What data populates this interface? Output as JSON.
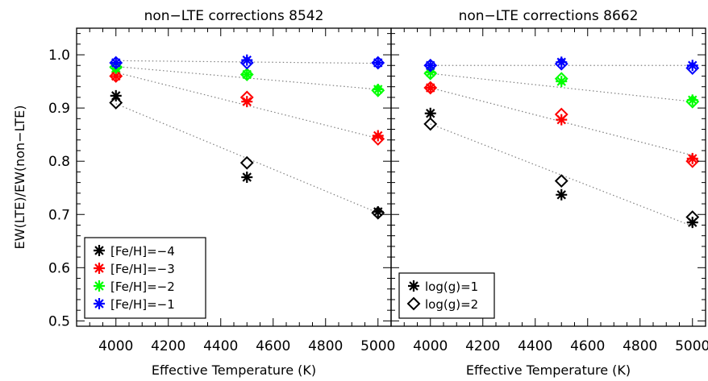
{
  "chart_data": [
    {
      "type": "scatter",
      "title": "non−LTE corrections 8542",
      "xlabel": "Effective Temperature (K)",
      "ylabel": "EW(LTE)/EW(non−LTE)",
      "xlim": [
        3850,
        5050
      ],
      "ylim": [
        0.49,
        1.05
      ],
      "xticks": [
        "4000",
        "4200",
        "4400",
        "4600",
        "4800",
        "5000"
      ],
      "yticks": [
        "0.5",
        "0.6",
        "0.7",
        "0.8",
        "0.9",
        "1.0"
      ],
      "grid": false,
      "legend_position": "bottom-left",
      "legend": [
        {
          "label": "[Fe/H]=−4",
          "color": "#000000",
          "marker": "asterisk"
        },
        {
          "label": "[Fe/H]=−3",
          "color": "#ff0000",
          "marker": "asterisk"
        },
        {
          "label": "[Fe/H]=−2",
          "color": "#00ff00",
          "marker": "asterisk"
        },
        {
          "label": "[Fe/H]=−1",
          "color": "#0000ff",
          "marker": "asterisk"
        }
      ],
      "series": [
        {
          "name": "[Fe/H]=−4",
          "color": "#000000",
          "marker": "asterisk",
          "x": [
            4000,
            4500,
            5000
          ],
          "y": [
            0.923,
            0.77,
            0.705
          ]
        },
        {
          "color": "#000000",
          "marker": "diamond",
          "x": [
            4000,
            4500,
            5000
          ],
          "y": [
            0.91,
            0.797,
            0.703
          ]
        },
        {
          "name": "[Fe/H]=−3",
          "color": "#ff0000",
          "marker": "asterisk",
          "x": [
            4000,
            4500,
            5000
          ],
          "y": [
            0.96,
            0.912,
            0.848
          ]
        },
        {
          "color": "#ff0000",
          "marker": "diamond",
          "x": [
            4000,
            4500,
            5000
          ],
          "y": [
            0.96,
            0.92,
            0.842
          ]
        },
        {
          "name": "[Fe/H]=−2",
          "color": "#00ff00",
          "marker": "asterisk",
          "x": [
            4000,
            4500,
            5000
          ],
          "y": [
            0.975,
            0.963,
            0.935
          ]
        },
        {
          "color": "#00ff00",
          "marker": "diamond",
          "x": [
            4000,
            4500,
            5000
          ],
          "y": [
            0.977,
            0.963,
            0.933
          ]
        },
        {
          "name": "[Fe/H]=−1",
          "color": "#0000ff",
          "marker": "asterisk",
          "x": [
            4000,
            4500,
            5000
          ],
          "y": [
            0.985,
            0.99,
            0.985
          ]
        },
        {
          "color": "#0000ff",
          "marker": "diamond",
          "x": [
            4000,
            4500,
            5000
          ],
          "y": [
            0.985,
            0.985,
            0.985
          ]
        }
      ],
      "fit_lines": [
        {
          "style": "dotted",
          "color": "#808080",
          "x": [
            4000,
            5000
          ],
          "y": [
            0.908,
            0.703
          ]
        },
        {
          "style": "dotted",
          "color": "#808080",
          "x": [
            4000,
            5000
          ],
          "y": [
            0.967,
            0.843
          ]
        },
        {
          "style": "dotted",
          "color": "#808080",
          "x": [
            4000,
            5000
          ],
          "y": [
            0.978,
            0.935
          ]
        },
        {
          "style": "dotted",
          "color": "#808080",
          "x": [
            4000,
            5000
          ],
          "y": [
            0.989,
            0.984
          ]
        }
      ]
    },
    {
      "type": "scatter",
      "title": "non−LTE corrections 8662",
      "xlabel": "Effective Temperature (K)",
      "ylabel": "",
      "xlim": [
        3850,
        5050
      ],
      "ylim": [
        0.49,
        1.05
      ],
      "xticks": [
        "4000",
        "4200",
        "4400",
        "4600",
        "4800",
        "5000"
      ],
      "yticks": [],
      "grid": false,
      "legend_position": "bottom-left",
      "legend": [
        {
          "label": "log(g)=1",
          "color": "#000000",
          "marker": "asterisk"
        },
        {
          "label": "log(g)=2",
          "color": "#000000",
          "marker": "diamond"
        }
      ],
      "series": [
        {
          "name": "log(g)=1",
          "color": "#000000",
          "marker": "asterisk",
          "x": [
            4000,
            4500,
            5000
          ],
          "y": [
            0.89,
            0.737,
            0.685
          ]
        },
        {
          "name": "log(g)=2",
          "color": "#000000",
          "marker": "diamond",
          "x": [
            4000,
            4500,
            5000
          ],
          "y": [
            0.87,
            0.763,
            0.695
          ]
        },
        {
          "color": "#ff0000",
          "marker": "asterisk",
          "x": [
            4000,
            4500,
            5000
          ],
          "y": [
            0.938,
            0.878,
            0.805
          ]
        },
        {
          "color": "#ff0000",
          "marker": "diamond",
          "x": [
            4000,
            4500,
            5000
          ],
          "y": [
            0.938,
            0.888,
            0.8
          ]
        },
        {
          "color": "#00ff00",
          "marker": "asterisk",
          "x": [
            4000,
            4500,
            5000
          ],
          "y": [
            0.967,
            0.95,
            0.915
          ]
        },
        {
          "color": "#00ff00",
          "marker": "diamond",
          "x": [
            4000,
            4500,
            5000
          ],
          "y": [
            0.965,
            0.955,
            0.912
          ]
        },
        {
          "color": "#0000ff",
          "marker": "asterisk",
          "x": [
            4000,
            4500,
            5000
          ],
          "y": [
            0.98,
            0.986,
            0.98
          ]
        },
        {
          "color": "#0000ff",
          "marker": "diamond",
          "x": [
            4000,
            4500,
            5000
          ],
          "y": [
            0.98,
            0.983,
            0.975
          ]
        }
      ],
      "fit_lines": [
        {
          "style": "dotted",
          "color": "#808080",
          "x": [
            4000,
            5000
          ],
          "y": [
            0.87,
            0.678
          ]
        },
        {
          "style": "dotted",
          "color": "#808080",
          "x": [
            4000,
            5000
          ],
          "y": [
            0.938,
            0.811
          ]
        },
        {
          "style": "dotted",
          "color": "#808080",
          "x": [
            4000,
            5000
          ],
          "y": [
            0.965,
            0.912
          ]
        },
        {
          "style": "dotted",
          "color": "#808080",
          "x": [
            4000,
            5000
          ],
          "y": [
            0.98,
            0.98
          ]
        }
      ]
    }
  ]
}
